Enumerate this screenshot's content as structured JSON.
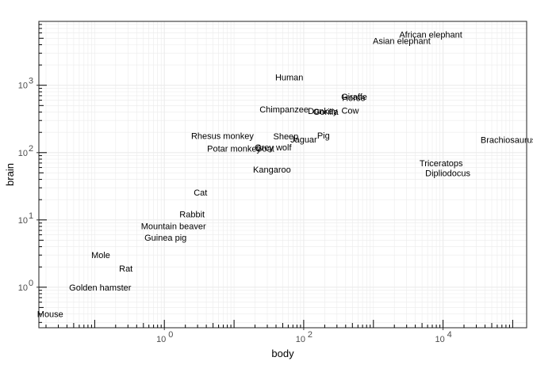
{
  "chart_data": {
    "type": "scatter",
    "xlabel": "body",
    "ylabel": "brain",
    "x_scale": "log10",
    "y_scale": "log10",
    "xlim": [
      0.0158,
      158489
    ],
    "ylim": [
      0.25,
      8900
    ],
    "grid": true,
    "x_ticks": [
      {
        "value": 1,
        "mantissa": "10",
        "exp": "0"
      },
      {
        "value": 100,
        "mantissa": "10",
        "exp": "2"
      },
      {
        "value": 10000,
        "mantissa": "10",
        "exp": "4"
      }
    ],
    "y_ticks": [
      {
        "value": 1,
        "mantissa": "10",
        "exp": "0"
      },
      {
        "value": 10,
        "mantissa": "10",
        "exp": "1"
      },
      {
        "value": 100,
        "mantissa": "10",
        "exp": "2"
      },
      {
        "value": 1000,
        "mantissa": "10",
        "exp": "3"
      }
    ],
    "points": [
      {
        "label": "Mountain beaver",
        "x": 1.35,
        "y": 8.1
      },
      {
        "label": "Cow",
        "x": 465,
        "y": 423
      },
      {
        "label": "Grey wolf",
        "x": 36.33,
        "y": 119.5
      },
      {
        "label": "Goat",
        "x": 27.66,
        "y": 115
      },
      {
        "label": "Guinea pig",
        "x": 1.04,
        "y": 5.5
      },
      {
        "label": "Dipliodocus",
        "x": 11700,
        "y": 50
      },
      {
        "label": "Asian elephant",
        "x": 2547,
        "y": 4603
      },
      {
        "label": "Donkey",
        "x": 187.1,
        "y": 419
      },
      {
        "label": "Horse",
        "x": 521,
        "y": 655
      },
      {
        "label": "Potar monkey",
        "x": 10,
        "y": 115
      },
      {
        "label": "Cat",
        "x": 3.3,
        "y": 25.6
      },
      {
        "label": "Giraffe",
        "x": 529,
        "y": 680
      },
      {
        "label": "Gorilla",
        "x": 207,
        "y": 406
      },
      {
        "label": "Human",
        "x": 62,
        "y": 1320
      },
      {
        "label": "African elephant",
        "x": 6654,
        "y": 5712
      },
      {
        "label": "Triceratops",
        "x": 9400,
        "y": 70
      },
      {
        "label": "Rhesus monkey",
        "x": 6.8,
        "y": 179
      },
      {
        "label": "Kangaroo",
        "x": 35,
        "y": 56
      },
      {
        "label": "Golden hamster",
        "x": 0.12,
        "y": 1
      },
      {
        "label": "Mouse",
        "x": 0.023,
        "y": 0.4
      },
      {
        "label": "Rabbit",
        "x": 2.5,
        "y": 12.1
      },
      {
        "label": "Sheep",
        "x": 55.5,
        "y": 175
      },
      {
        "label": "Jaguar",
        "x": 100,
        "y": 157
      },
      {
        "label": "Chimpanzee",
        "x": 52.16,
        "y": 440
      },
      {
        "label": "Rat",
        "x": 0.28,
        "y": 1.9
      },
      {
        "label": "Brachiosaurus",
        "x": 87000,
        "y": 154.5
      },
      {
        "label": "Mole",
        "x": 0.122,
        "y": 3
      },
      {
        "label": "Pig",
        "x": 192,
        "y": 180
      }
    ]
  }
}
